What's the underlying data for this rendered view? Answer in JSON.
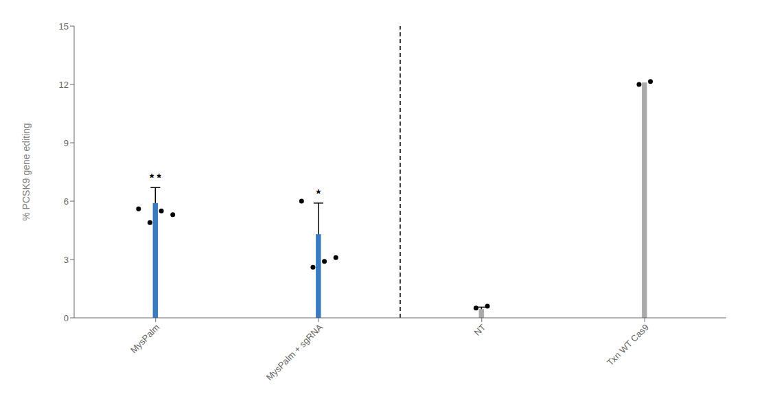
{
  "chart_data": {
    "type": "bar",
    "categories": [
      "MysPalm",
      "MysPalm + sgRNA",
      "NT",
      "Txn WT Cas9"
    ],
    "values": [
      5.9,
      4.3,
      0.45,
      12.1
    ],
    "colors": [
      "#3a7abf",
      "#3a7abf",
      "#aaaaaa",
      "#aaaaaa"
    ],
    "yerr_upper": [
      0.8,
      1.6,
      0.1,
      0.0
    ],
    "points": [
      [
        5.6,
        4.9,
        5.5,
        5.3
      ],
      [
        6.0,
        2.6,
        2.9,
        3.1
      ],
      [
        0.5,
        0.6
      ],
      [
        12.0,
        12.15
      ]
    ],
    "annotations": [
      {
        "text": "* *",
        "category": "MysPalm"
      },
      {
        "text": "*",
        "category": "MysPalm + sgRNA"
      }
    ],
    "ylabel": "% PCSK9 gene editing",
    "ylim": [
      0,
      15
    ],
    "yticks": [
      0,
      3,
      6,
      9,
      12,
      15
    ],
    "grid": false
  }
}
